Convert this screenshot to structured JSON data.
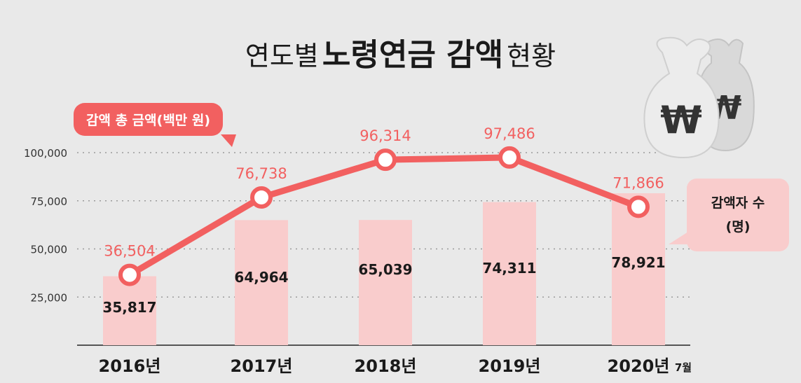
{
  "title": {
    "part1": "연도별",
    "part2": "노령연금 감액",
    "part3": "현황"
  },
  "legend": {
    "line_label": "감액 총 금액(백만 원)",
    "bar_label_line1": "감액자 수",
    "bar_label_line2": "(명)"
  },
  "x_note": "7월",
  "colors": {
    "line": "#f26060",
    "bar": "#f9cccc",
    "bar_value_text": "#1a1a1a",
    "line_value_text": "#f26060"
  },
  "icon": "money-bag-won-icon",
  "chart_data": {
    "type": "bar+line",
    "categories": [
      "2016년",
      "2017년",
      "2018년",
      "2019년",
      "2020년"
    ],
    "series": [
      {
        "name": "감액자 수 (명)",
        "type": "bar",
        "values": [
          35817,
          64964,
          65039,
          74311,
          78921
        ]
      },
      {
        "name": "감액 총 금액(백만 원)",
        "type": "line",
        "values": [
          36504,
          76738,
          96314,
          97486,
          71866
        ]
      }
    ],
    "value_labels": {
      "bar": [
        "35,817",
        "64,964",
        "65,039",
        "74,311",
        "78,921"
      ],
      "line": [
        "36,504",
        "76,738",
        "96,314",
        "97,486",
        "71,866"
      ]
    },
    "y_ticks": [
      25000,
      50000,
      75000,
      100000
    ],
    "y_tick_labels": [
      "25,000",
      "50,000",
      "75,000",
      "100,000"
    ],
    "ylim": [
      0,
      100000
    ],
    "grid": true
  }
}
